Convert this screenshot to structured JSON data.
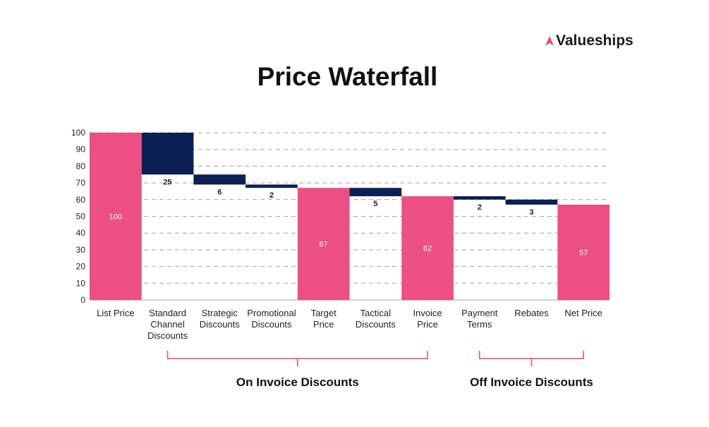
{
  "brand": {
    "name": "Valueships",
    "logo_color": "#e8457a"
  },
  "chart_data": {
    "type": "waterfall",
    "title": "Price Waterfall",
    "categories": [
      [
        "List Price"
      ],
      [
        "Standard",
        "Channel",
        "Discounts"
      ],
      [
        "Strategic",
        "Discounts"
      ],
      [
        "Promotional",
        "Discounts"
      ],
      [
        "Target",
        "Price"
      ],
      [
        "Tactical",
        "Discounts"
      ],
      [
        "Invoice",
        "Price"
      ],
      [
        "Payment",
        "Terms"
      ],
      [
        "Rebates"
      ],
      [
        "Net Price"
      ]
    ],
    "kinds": [
      "total",
      "decrease",
      "decrease",
      "decrease",
      "total",
      "decrease",
      "total",
      "decrease",
      "decrease",
      "total"
    ],
    "values": [
      100,
      25,
      6,
      2,
      67,
      5,
      62,
      2,
      3,
      57
    ],
    "labels": [
      "100",
      "25",
      "6",
      "2",
      "67",
      "5",
      "62",
      "2",
      "3",
      "57"
    ],
    "ylim": [
      0,
      100
    ],
    "yticks": [
      0,
      10,
      20,
      30,
      40,
      50,
      60,
      70,
      80,
      90,
      100
    ],
    "grid": true,
    "colors": {
      "total": "#ec4f84",
      "decrease": "#0b1f55"
    },
    "groups": [
      {
        "label": "On Invoice Discounts",
        "from": 1,
        "to": 6
      },
      {
        "label": "Off Invoice Discounts",
        "from": 7,
        "to": 9
      }
    ]
  }
}
